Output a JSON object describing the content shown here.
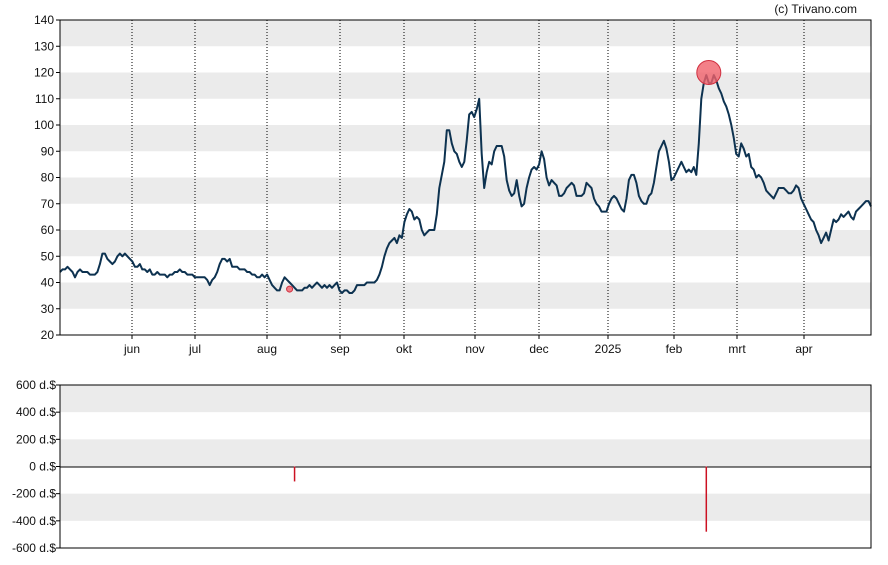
{
  "credit": "(c) Trivano.com",
  "colors": {
    "price_line": "#0d3250",
    "marker": "#f0606a",
    "band": "#ebebeb",
    "bar": "#cc1122"
  },
  "chart_data": [
    {
      "type": "line",
      "title": "",
      "ylim": [
        20,
        140
      ],
      "y_ticks": [
        "140",
        "130",
        "120",
        "110",
        "100",
        "90",
        "80",
        "70",
        "60",
        "50",
        "40",
        "30",
        "20"
      ],
      "x_tick_labels": [
        "jun",
        "jul",
        "aug",
        "sep",
        "okt",
        "nov",
        "dec",
        "2025",
        "feb",
        "mrt",
        "apr"
      ],
      "grid": "alternating horizontal bands, dotted vertical lines at month ticks",
      "series": [
        {
          "values": [
            44,
            45,
            45,
            46,
            45,
            44,
            42,
            44,
            45,
            44,
            44,
            44,
            43,
            43,
            43,
            44,
            47,
            51,
            51,
            49,
            48,
            47,
            48,
            50,
            51,
            50,
            51,
            50,
            49,
            48,
            46,
            46,
            47,
            45,
            45,
            44,
            45,
            43,
            43,
            44,
            43,
            43,
            43,
            42,
            43,
            43,
            44,
            44,
            45,
            44,
            44,
            43,
            43,
            43,
            42,
            42,
            42,
            42,
            42,
            41,
            39,
            41,
            42,
            44,
            47,
            49,
            49,
            48,
            49,
            46,
            46,
            46,
            45,
            45,
            45,
            44,
            44,
            43,
            43,
            42,
            42,
            43,
            42,
            43,
            41,
            39,
            38,
            37,
            37,
            40,
            42,
            41,
            40,
            39,
            38,
            37,
            37,
            37,
            38,
            38,
            39,
            38,
            39,
            40,
            39,
            38,
            39,
            38,
            39,
            38,
            39,
            40,
            37,
            36,
            37,
            37,
            36,
            36,
            37,
            39,
            39,
            39,
            39,
            40,
            40,
            40,
            40,
            41,
            43,
            46,
            50,
            53,
            55,
            56,
            57,
            55,
            58,
            57,
            63,
            66,
            68,
            67,
            64,
            65,
            64,
            60,
            58,
            59,
            60,
            60,
            60,
            66,
            76,
            81,
            86,
            98,
            98,
            93,
            90,
            89,
            86,
            84,
            86,
            94,
            104,
            105,
            103,
            106,
            110,
            89,
            76,
            82,
            86,
            85,
            90,
            92,
            92,
            92,
            88,
            79,
            75,
            73,
            74,
            79,
            73,
            69,
            70,
            76,
            80,
            83,
            84,
            83,
            85,
            90,
            87,
            80,
            77,
            79,
            78,
            77,
            73,
            73,
            74,
            76,
            77,
            78,
            77,
            73,
            73,
            73,
            74,
            78,
            77,
            76,
            72,
            70,
            69,
            67,
            67,
            67,
            70,
            72,
            73,
            72,
            70,
            68,
            67,
            72,
            79,
            81,
            81,
            78,
            73,
            71,
            70,
            70,
            73,
            74,
            78,
            84,
            90,
            92,
            94,
            91,
            86,
            79,
            80,
            82,
            84,
            86,
            84,
            82,
            83,
            82,
            84,
            81,
            93,
            110,
            116,
            119,
            116,
            116,
            119,
            117,
            114,
            112,
            109,
            107,
            104,
            100,
            95,
            89,
            88,
            93,
            91,
            88,
            89,
            84,
            83,
            80,
            81,
            80,
            78,
            75,
            74,
            73,
            72,
            74,
            76,
            76,
            76,
            75,
            74,
            74,
            75,
            77,
            76,
            72,
            70,
            68,
            66,
            64,
            63,
            60,
            58,
            55,
            57,
            59,
            56,
            60,
            64,
            63,
            64,
            66,
            65,
            66,
            67,
            65,
            64,
            67,
            68,
            69,
            70,
            71,
            71,
            69
          ]
        }
      ],
      "markers": [
        {
          "x_index": 92,
          "value": 37.5,
          "size": "small"
        },
        {
          "x_index": 260,
          "value": 120,
          "size": "large"
        }
      ]
    },
    {
      "type": "bar",
      "title": "",
      "ylim": [
        -600,
        600
      ],
      "y_ticks": [
        "600 d.$",
        "400 d.$",
        "200 d.$",
        "0 d.$",
        "-200 d.$",
        "-400 d.$",
        "-600 d.$"
      ],
      "bars": [
        {
          "x_index": 94,
          "value": -110
        },
        {
          "x_index": 259,
          "value": -480
        }
      ]
    }
  ]
}
